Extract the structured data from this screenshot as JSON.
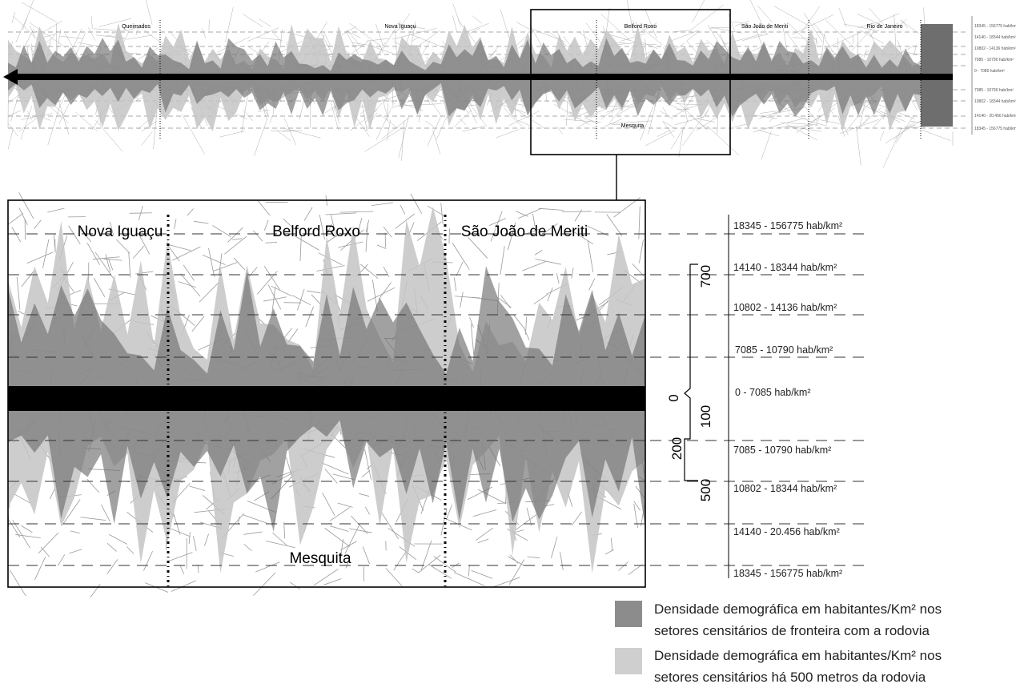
{
  "overview": {
    "places": [
      "Queimados",
      "Nova Iguaçu",
      "Belford Roxo",
      "São João de Meriti",
      "Rio de Janeiro"
    ],
    "south_place": "Mesquita"
  },
  "detail": {
    "places": [
      "Nova Iguaçu",
      "Belford Roxo",
      "São João de Meriti"
    ],
    "south_place": "Mesquita"
  },
  "distance_scale": {
    "north": [
      700
    ],
    "origin": 0,
    "south": [
      100,
      200,
      500
    ]
  },
  "density_levels": {
    "north": [
      "18345 - 156775 hab/km²",
      "14140 - 18344 hab/km²",
      "10802 - 14136 hab/km²",
      "7085 - 10790 hab/km²"
    ],
    "road": "0 - 7085 hab/km²",
    "south": [
      "7085 - 10790 hab/km²",
      "10802 - 18344 hab/km²",
      "14140 - 20.456 hab/km²",
      "18345 - 156775 hab/km²"
    ]
  },
  "key": [
    {
      "lines": [
        "Densidade demográfica em habitantes/Km² nos",
        "setores censitários de fronteira com a rodovia"
      ]
    },
    {
      "lines": [
        "Densidade demográfica em habitantes/Km² nos",
        "setores censitários há 500 metros da rodovia"
      ]
    }
  ]
}
